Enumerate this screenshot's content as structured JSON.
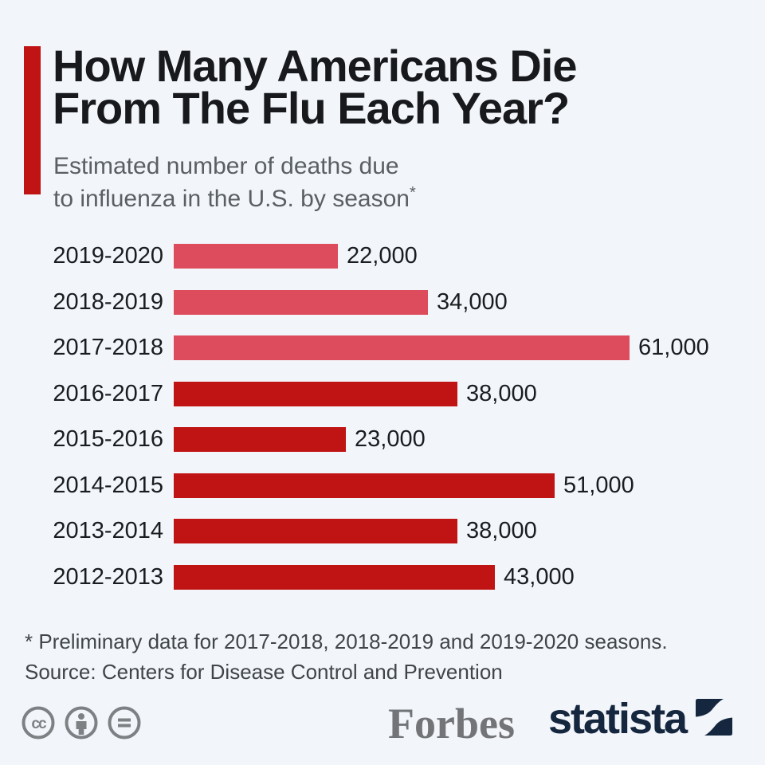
{
  "header": {
    "title_line1": "How Many Americans Die",
    "title_line2": "From The Flu Each Year?",
    "subtitle_line1": "Estimated number of deaths due",
    "subtitle_line2": "to influenza in the U.S. by season",
    "subtitle_marker": "*"
  },
  "chart_data": {
    "type": "bar",
    "orientation": "horizontal",
    "title": "How Many Americans Die From The Flu Each Year?",
    "subtitle": "Estimated number of deaths due to influenza in the U.S. by season*",
    "xlabel": "",
    "ylabel": "",
    "xlim": [
      0,
      61000
    ],
    "grid": false,
    "legend": "none",
    "categories": [
      "2019-2020",
      "2018-2019",
      "2017-2018",
      "2016-2017",
      "2015-2016",
      "2014-2015",
      "2013-2014",
      "2012-2013"
    ],
    "values": [
      22000,
      34000,
      61000,
      38000,
      23000,
      51000,
      38000,
      43000
    ],
    "value_labels": [
      "22,000",
      "34,000",
      "61,000",
      "38,000",
      "23,000",
      "51,000",
      "38,000",
      "43,000"
    ],
    "preliminary_flags": [
      true,
      true,
      true,
      false,
      false,
      false,
      false,
      false
    ],
    "colors": {
      "preliminary": "#dd4c5c",
      "final": "#c01414"
    }
  },
  "footnotes": {
    "note": "* Preliminary data for 2017-2018, 2018-2019 and 2019-2020 seasons.",
    "source": "Source: Centers for Disease Control and Prevention"
  },
  "footer": {
    "license_icons": [
      "cc-icon",
      "attribution-icon",
      "no-derivatives-icon"
    ],
    "publisher_logo_text": "Forbes",
    "brand_logo_text": "statista"
  },
  "colors": {
    "background": "#f2f5f9",
    "accent_red": "#c01313",
    "bar_preliminary": "#dd4c5c",
    "bar_final": "#c01414",
    "title_text": "#17191c",
    "subtitle_text": "#595f64",
    "footnote_text": "#3f454a",
    "cc_gray": "#7d8184",
    "forbes_gray": "#737477",
    "statista_navy": "#15273f"
  }
}
